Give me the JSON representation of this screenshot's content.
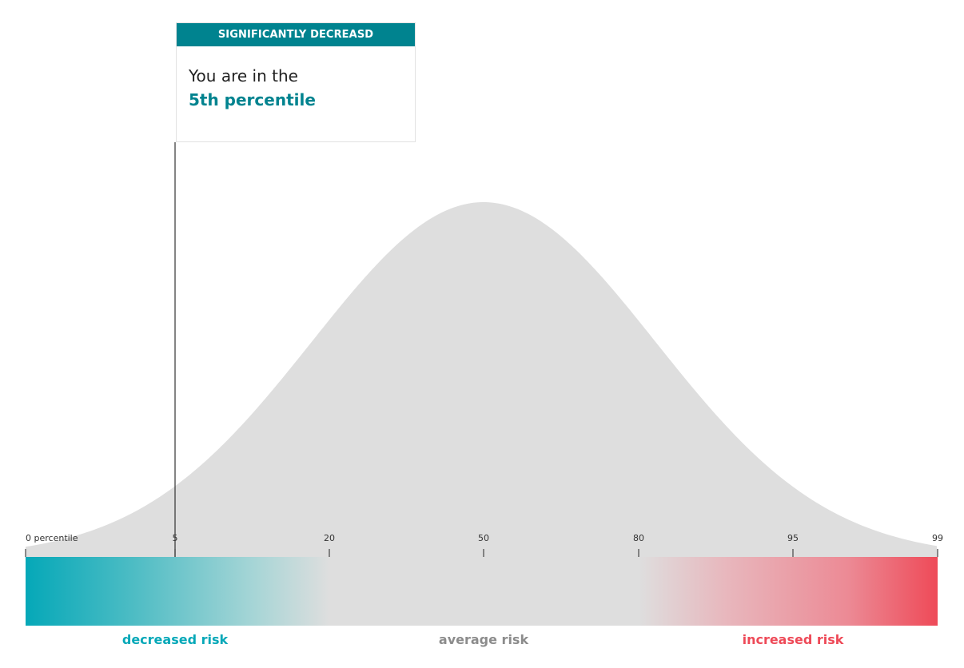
{
  "callout": {
    "header": "SIGNIFICANTLY DECREASD",
    "line1": "You are in the",
    "line2": "5th percentile",
    "marker_percentile": 5
  },
  "colors": {
    "teal": "#00838f",
    "decreased": "#05a8b8",
    "increased": "#ee4a58",
    "neutral": "#dedede",
    "average_label": "#8c8c8c"
  },
  "chart_data": {
    "type": "area",
    "description_shape": "normal distribution (bell curve) of risk percentiles",
    "x_ticks": [
      {
        "value": 0,
        "label": "0 percentile"
      },
      {
        "value": 5,
        "label": "5"
      },
      {
        "value": 20,
        "label": "20"
      },
      {
        "value": 50,
        "label": "50"
      },
      {
        "value": 80,
        "label": "80"
      },
      {
        "value": 95,
        "label": "95"
      },
      {
        "value": 99,
        "label": "99"
      }
    ],
    "marker": 5,
    "risk_bands": [
      {
        "label": "decreased risk",
        "from": 0,
        "to": 20,
        "color": "#05a8b8"
      },
      {
        "label": "average risk",
        "from": 20,
        "to": 80,
        "color": "#8c8c8c"
      },
      {
        "label": "increased risk",
        "from": 80,
        "to": 99,
        "color": "#ee4a58"
      }
    ]
  }
}
